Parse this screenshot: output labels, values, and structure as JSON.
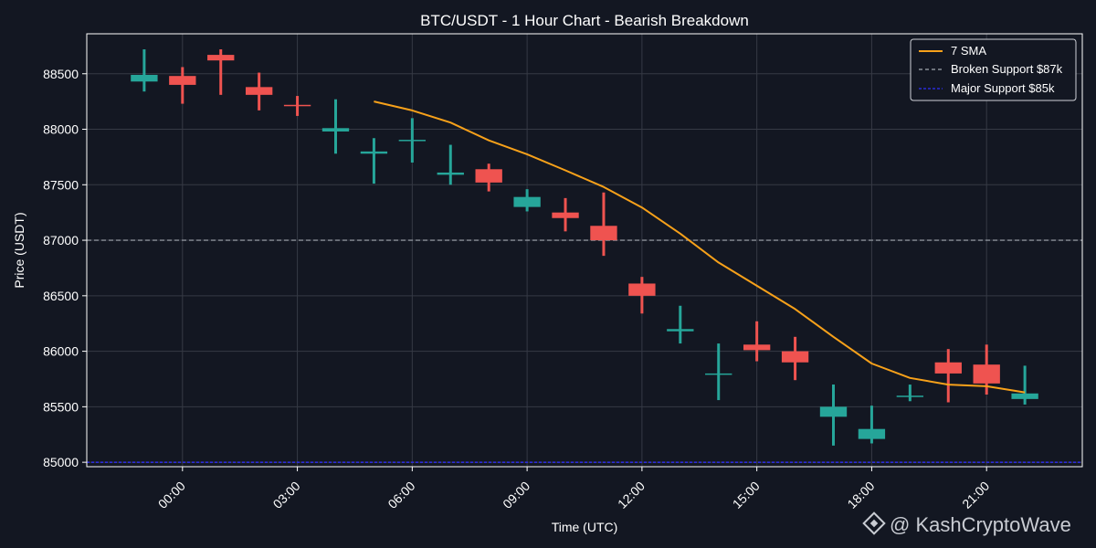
{
  "theme": {
    "background": "#131722",
    "grid": "#363a45",
    "axis_text": "#ffffff",
    "bull": "#26a69a",
    "bear": "#ef5350",
    "sma": "#f7a11a",
    "broken_support": "#8a8f98",
    "major_support": "#2b2bd6"
  },
  "chart_data": {
    "type": "candlestick",
    "title": "BTC/USDT - 1 Hour Chart - Bearish Breakdown",
    "xlabel": "Time (UTC)",
    "ylabel": "Price (USDT)",
    "grid": true,
    "legend_position": "top-right",
    "xlim": [
      -2.5,
      23.5
    ],
    "ylim": [
      84960,
      88860
    ],
    "x_ticks": [
      0,
      3,
      6,
      9,
      12,
      15,
      18,
      21
    ],
    "x_tick_labels": [
      "00:00",
      "03:00",
      "06:00",
      "09:00",
      "12:00",
      "15:00",
      "18:00",
      "21:00"
    ],
    "y_ticks": [
      85000,
      85500,
      86000,
      86500,
      87000,
      87500,
      88000,
      88500
    ],
    "y_tick_labels": [
      "85000",
      "85500",
      "86000",
      "86500",
      "87000",
      "87500",
      "88000",
      "88500"
    ],
    "candles": [
      {
        "x": -1,
        "open": 88430,
        "high": 88720,
        "low": 88340,
        "close": 88490
      },
      {
        "x": 0,
        "open": 88480,
        "high": 88560,
        "low": 88230,
        "close": 88400
      },
      {
        "x": 1,
        "open": 88670,
        "high": 88720,
        "low": 88310,
        "close": 88620
      },
      {
        "x": 2,
        "open": 88380,
        "high": 88510,
        "low": 88170,
        "close": 88310
      },
      {
        "x": 3,
        "open": 88220,
        "high": 88300,
        "low": 88120,
        "close": 88210
      },
      {
        "x": 4,
        "open": 87980,
        "high": 88270,
        "low": 87780,
        "close": 88010
      },
      {
        "x": 5,
        "open": 87780,
        "high": 87920,
        "low": 87510,
        "close": 87800
      },
      {
        "x": 6,
        "open": 87900,
        "high": 88100,
        "low": 87700,
        "close": 87905
      },
      {
        "x": 7,
        "open": 87590,
        "high": 87860,
        "low": 87500,
        "close": 87610
      },
      {
        "x": 8,
        "open": 87640,
        "high": 87690,
        "low": 87440,
        "close": 87520
      },
      {
        "x": 9,
        "open": 87300,
        "high": 87460,
        "low": 87260,
        "close": 87390
      },
      {
        "x": 10,
        "open": 87250,
        "high": 87380,
        "low": 87080,
        "close": 87200
      },
      {
        "x": 11,
        "open": 87130,
        "high": 87430,
        "low": 86860,
        "close": 87000
      },
      {
        "x": 12,
        "open": 86610,
        "high": 86670,
        "low": 86340,
        "close": 86500
      },
      {
        "x": 13,
        "open": 86180,
        "high": 86410,
        "low": 86070,
        "close": 86200
      },
      {
        "x": 14,
        "open": 85790,
        "high": 86070,
        "low": 85560,
        "close": 85800
      },
      {
        "x": 15,
        "open": 86060,
        "high": 86270,
        "low": 85910,
        "close": 86010
      },
      {
        "x": 16,
        "open": 86000,
        "high": 86130,
        "low": 85740,
        "close": 85900
      },
      {
        "x": 17,
        "open": 85410,
        "high": 85700,
        "low": 85150,
        "close": 85500
      },
      {
        "x": 18,
        "open": 85210,
        "high": 85510,
        "low": 85170,
        "close": 85300
      },
      {
        "x": 19,
        "open": 85590,
        "high": 85700,
        "low": 85550,
        "close": 85600
      },
      {
        "x": 20,
        "open": 85900,
        "high": 86020,
        "low": 85540,
        "close": 85800
      },
      {
        "x": 21,
        "open": 85880,
        "high": 86060,
        "low": 85610,
        "close": 85710
      },
      {
        "x": 22,
        "open": 85570,
        "high": 85870,
        "low": 85520,
        "close": 85620
      }
    ],
    "series": [
      {
        "name": "7 SMA",
        "type": "line",
        "x": [
          5,
          6,
          7,
          8,
          9,
          10,
          11,
          12,
          13,
          14,
          15,
          16,
          17,
          18,
          19,
          20,
          21,
          22
        ],
        "values": [
          88250,
          88170,
          88060,
          87900,
          87775,
          87630,
          87480,
          87295,
          87060,
          86800,
          86590,
          86380,
          86130,
          85890,
          85760,
          85700,
          85685,
          85630
        ]
      },
      {
        "name": "Broken Support $87k",
        "type": "hline",
        "value": 87000
      },
      {
        "name": "Major Support $85k",
        "type": "hline",
        "value": 85000
      }
    ]
  },
  "watermark": {
    "text": "@ KashCryptoWave",
    "icon": "binance-logo-icon"
  }
}
